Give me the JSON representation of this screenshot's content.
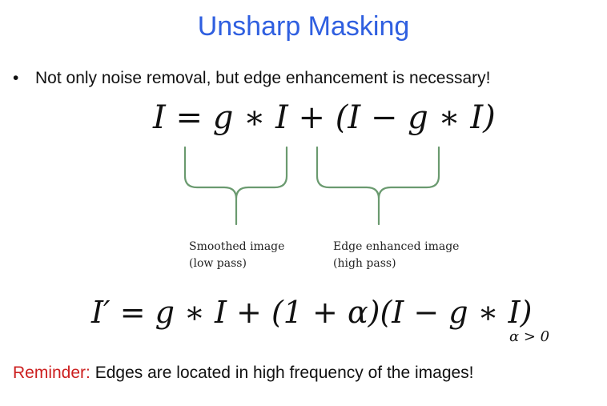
{
  "slide": {
    "title": "Unsharp Masking",
    "bullet_marker": "•",
    "bullet_text": "Not only noise removal, but edge enhancement is necessary!",
    "equation_1": {
      "lhs": "I",
      "eq": "=",
      "smooth_term": "g ∗ I",
      "plus": "+",
      "edge_term": "(I − g ∗ I)"
    },
    "smoothed_label_line1": "Smoothed image",
    "smoothed_label_line2": "(low pass)",
    "edge_label_line1": "Edge enhanced image",
    "edge_label_line2": "(high pass)",
    "equation_2": "I′ = g ∗ I + (1 + α)(I − g ∗ I)",
    "alpha_condition": "α > 0",
    "reminder_prefix": "Reminder:",
    "reminder_text": " Edges are located in high frequency of the images!"
  },
  "colors": {
    "title": "#2f5fe0",
    "brace": "#6a9a6f",
    "reminder_prefix": "#cc1f1f",
    "text": "#111111"
  }
}
